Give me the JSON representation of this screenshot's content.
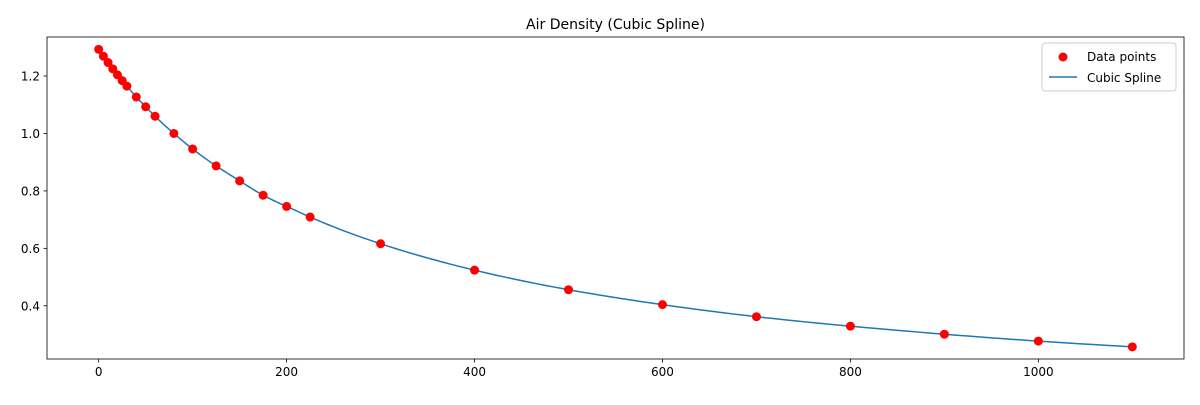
{
  "chart_data": {
    "type": "scatter",
    "title": "Air Density (Cubic Spline)",
    "xlabel": "",
    "ylabel": "",
    "xlim": [
      -55,
      1155
    ],
    "ylim": [
      0.2147,
      1.3359
    ],
    "x_ticks": [
      0,
      200,
      400,
      600,
      800,
      1000
    ],
    "y_ticks": [
      0.4,
      0.6,
      0.8,
      1.0,
      1.2
    ],
    "y_tick_labels": [
      "0.4",
      "0.6",
      "0.8",
      "1.0",
      "1.2"
    ],
    "grid": false,
    "legend_position": "top-right",
    "series": [
      {
        "name": "Data points",
        "kind": "scatter",
        "color": "#ff0000",
        "x": [
          0,
          5,
          10,
          15,
          20,
          25,
          30,
          40,
          50,
          60,
          80,
          100,
          125,
          150,
          175,
          200,
          225,
          300,
          400,
          500,
          600,
          700,
          800,
          900,
          1000,
          1100
        ],
        "y": [
          1.293,
          1.269,
          1.247,
          1.225,
          1.204,
          1.184,
          1.165,
          1.127,
          1.093,
          1.06,
          1.0,
          0.946,
          0.887,
          0.835,
          0.785,
          0.746,
          0.709,
          0.616,
          0.524,
          0.456,
          0.404,
          0.362,
          0.329,
          0.301,
          0.277,
          0.257
        ]
      },
      {
        "name": "Cubic Spline",
        "kind": "line",
        "color": "#1f77b4"
      }
    ]
  }
}
